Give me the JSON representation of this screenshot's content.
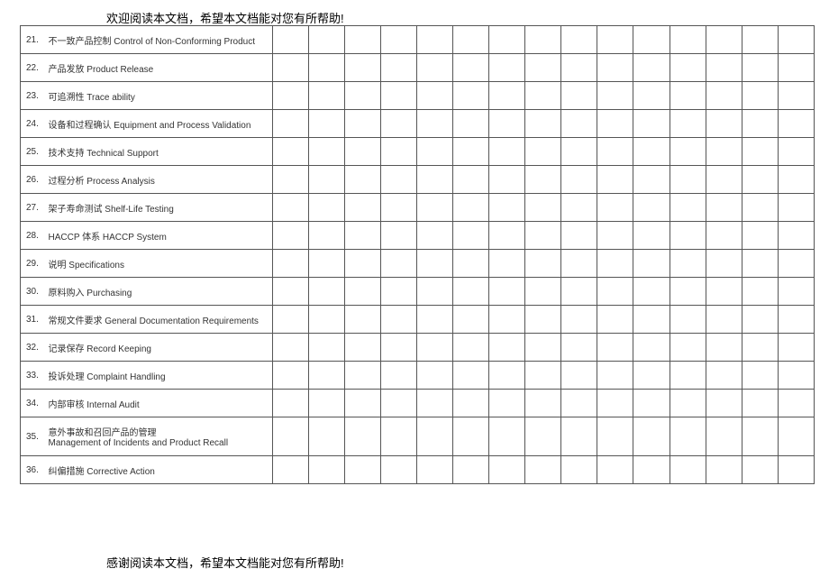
{
  "header_text": "欢迎阅读本文档，希望本文档能对您有所帮助!",
  "footer_text": "感谢阅读本文档，希望本文档能对您有所帮助!",
  "table": {
    "empty_columns": 15,
    "rows": [
      {
        "num": "21.",
        "label": "不一致产品控制 Control of Non-Conforming Product"
      },
      {
        "num": "22.",
        "label": "产品发放 Product Release"
      },
      {
        "num": "23.",
        "label": "可追溯性 Trace ability"
      },
      {
        "num": "24.",
        "label": "设备和过程确认 Equipment and Process Validation"
      },
      {
        "num": "25.",
        "label": "技术支持 Technical Support"
      },
      {
        "num": "26.",
        "label": "过程分析 Process Analysis"
      },
      {
        "num": "27.",
        "label": "架子寿命测试 Shelf-Life Testing"
      },
      {
        "num": "28.",
        "label": "HACCP 体系 HACCP System"
      },
      {
        "num": "29.",
        "label": "说明 Specifications"
      },
      {
        "num": "30.",
        "label": "原料购入 Purchasing"
      },
      {
        "num": "31.",
        "label": "常规文件要求 General Documentation Requirements"
      },
      {
        "num": "32.",
        "label": "记录保存 Record Keeping"
      },
      {
        "num": "33.",
        "label": "投诉处理 Complaint Handling"
      },
      {
        "num": "34.",
        "label": "内部审核 Internal Audit"
      },
      {
        "num": "35.",
        "label": "意外事故和召回产品的管理\nManagement of Incidents and Product Recall",
        "double": true
      },
      {
        "num": "36.",
        "label": "纠偏措施 Corrective Action"
      }
    ]
  }
}
